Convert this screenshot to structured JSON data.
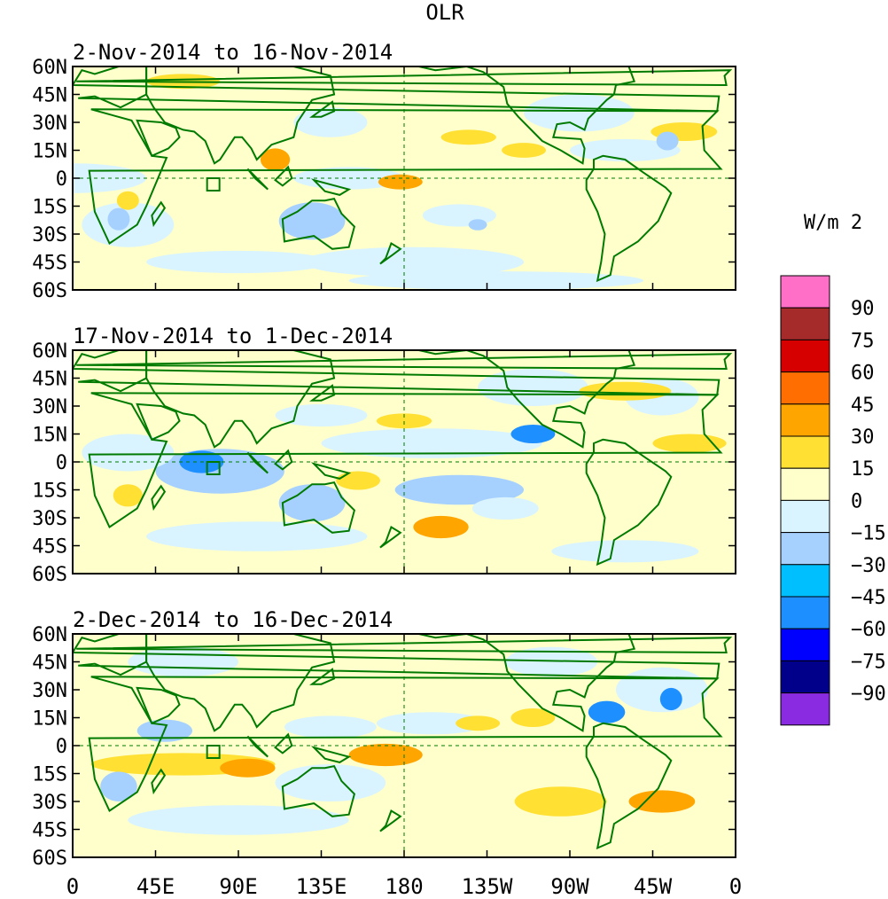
{
  "title": "OLR",
  "units_label": "W/m 2",
  "panels": [
    {
      "period": "2-Nov-2014 to 16-Nov-2014"
    },
    {
      "period": "17-Nov-2014 to 1-Dec-2014"
    },
    {
      "period": "2-Dec-2014 to 16-Dec-2014"
    }
  ],
  "lat_labels": [
    "60N",
    "45N",
    "30N",
    "15N",
    "0",
    "15S",
    "30S",
    "45S",
    "60S"
  ],
  "lon_labels": [
    "0",
    "45E",
    "90E",
    "135E",
    "180",
    "135W",
    "90W",
    "45W",
    "0"
  ],
  "colorbar": {
    "labels": [
      "90",
      "75",
      "60",
      "45",
      "30",
      "15",
      "0",
      "−15",
      "−30",
      "−45",
      "−60",
      "−75",
      "−90"
    ],
    "colors": [
      "#ff6ec7",
      "#a52a2a",
      "#d60000",
      "#ff6e00",
      "#ffa500",
      "#ffe033",
      "#ffffcc",
      "#d9f3ff",
      "#a6d1ff",
      "#00bfff",
      "#1e8fff",
      "#0000ff",
      "#00008b",
      "#8a2be2"
    ]
  },
  "map_colors": {
    "ocean_bg": "#ffffcc",
    "coast": "#007a00",
    "neg_light": "#d9f3ff",
    "neg_mid": "#a6d1ff",
    "neg_strong": "#1e8fff",
    "pos_light": "#ffe033",
    "pos_mid": "#ffa500"
  }
}
